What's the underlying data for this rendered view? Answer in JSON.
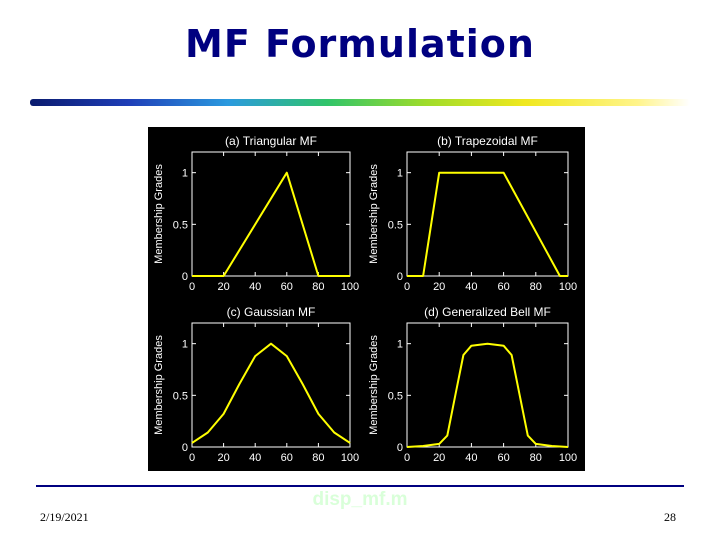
{
  "slide": {
    "title": "MF Formulation",
    "date": "2/19/2021",
    "file_label": "disp_mf.m",
    "page_number": "28"
  },
  "colors": {
    "title": "#000080",
    "curve": "#ffff00",
    "axes": "#ffffff",
    "figure_bg": "#000000",
    "footer_line": "#000080",
    "file_label": "#d9ffd9"
  },
  "chart_data": [
    {
      "type": "line",
      "title": "(a) Triangular MF",
      "xlabel": "",
      "ylabel": "Membership Grades",
      "xlim": [
        0,
        100
      ],
      "ylim": [
        0,
        1.2
      ],
      "xticks": [
        "0",
        "20",
        "40",
        "60",
        "80",
        "100"
      ],
      "yticks": [
        "0",
        "0.5",
        "1"
      ],
      "grid": false,
      "x": [
        0,
        20,
        60,
        80,
        100
      ],
      "values": [
        0,
        0,
        1,
        0,
        0
      ]
    },
    {
      "type": "line",
      "title": "(b) Trapezoidal MF",
      "xlabel": "",
      "ylabel": "Membership Grades",
      "xlim": [
        0,
        100
      ],
      "ylim": [
        0,
        1.2
      ],
      "xticks": [
        "0",
        "20",
        "40",
        "60",
        "80",
        "100"
      ],
      "yticks": [
        "0",
        "0.5",
        "1"
      ],
      "grid": false,
      "x": [
        0,
        10,
        20,
        60,
        95,
        100
      ],
      "values": [
        0,
        0,
        1,
        1,
        0,
        0
      ]
    },
    {
      "type": "line",
      "title": "(c) Gaussian MF",
      "xlabel": "",
      "ylabel": "Membership Grades",
      "xlim": [
        0,
        100
      ],
      "ylim": [
        0,
        1.2
      ],
      "xticks": [
        "0",
        "20",
        "40",
        "60",
        "80",
        "100"
      ],
      "yticks": [
        "0",
        "0.5",
        "1"
      ],
      "grid": false,
      "x": [
        0,
        10,
        20,
        30,
        40,
        50,
        60,
        70,
        80,
        90,
        100
      ],
      "values": [
        0.04,
        0.14,
        0.32,
        0.61,
        0.88,
        1.0,
        0.88,
        0.61,
        0.32,
        0.14,
        0.04
      ]
    },
    {
      "type": "line",
      "title": "(d) Generalized Bell MF",
      "xlabel": "",
      "ylabel": "Membership Grades",
      "xlim": [
        0,
        100
      ],
      "ylim": [
        0,
        1.2
      ],
      "xticks": [
        "0",
        "20",
        "40",
        "60",
        "80",
        "100"
      ],
      "yticks": [
        "0",
        "0.5",
        "1"
      ],
      "grid": false,
      "x": [
        0,
        10,
        20,
        25,
        30,
        35,
        40,
        50,
        60,
        65,
        70,
        75,
        80,
        90,
        100
      ],
      "values": [
        0.0,
        0.01,
        0.03,
        0.11,
        0.5,
        0.89,
        0.98,
        1.0,
        0.98,
        0.89,
        0.5,
        0.11,
        0.03,
        0.01,
        0.0
      ]
    }
  ]
}
